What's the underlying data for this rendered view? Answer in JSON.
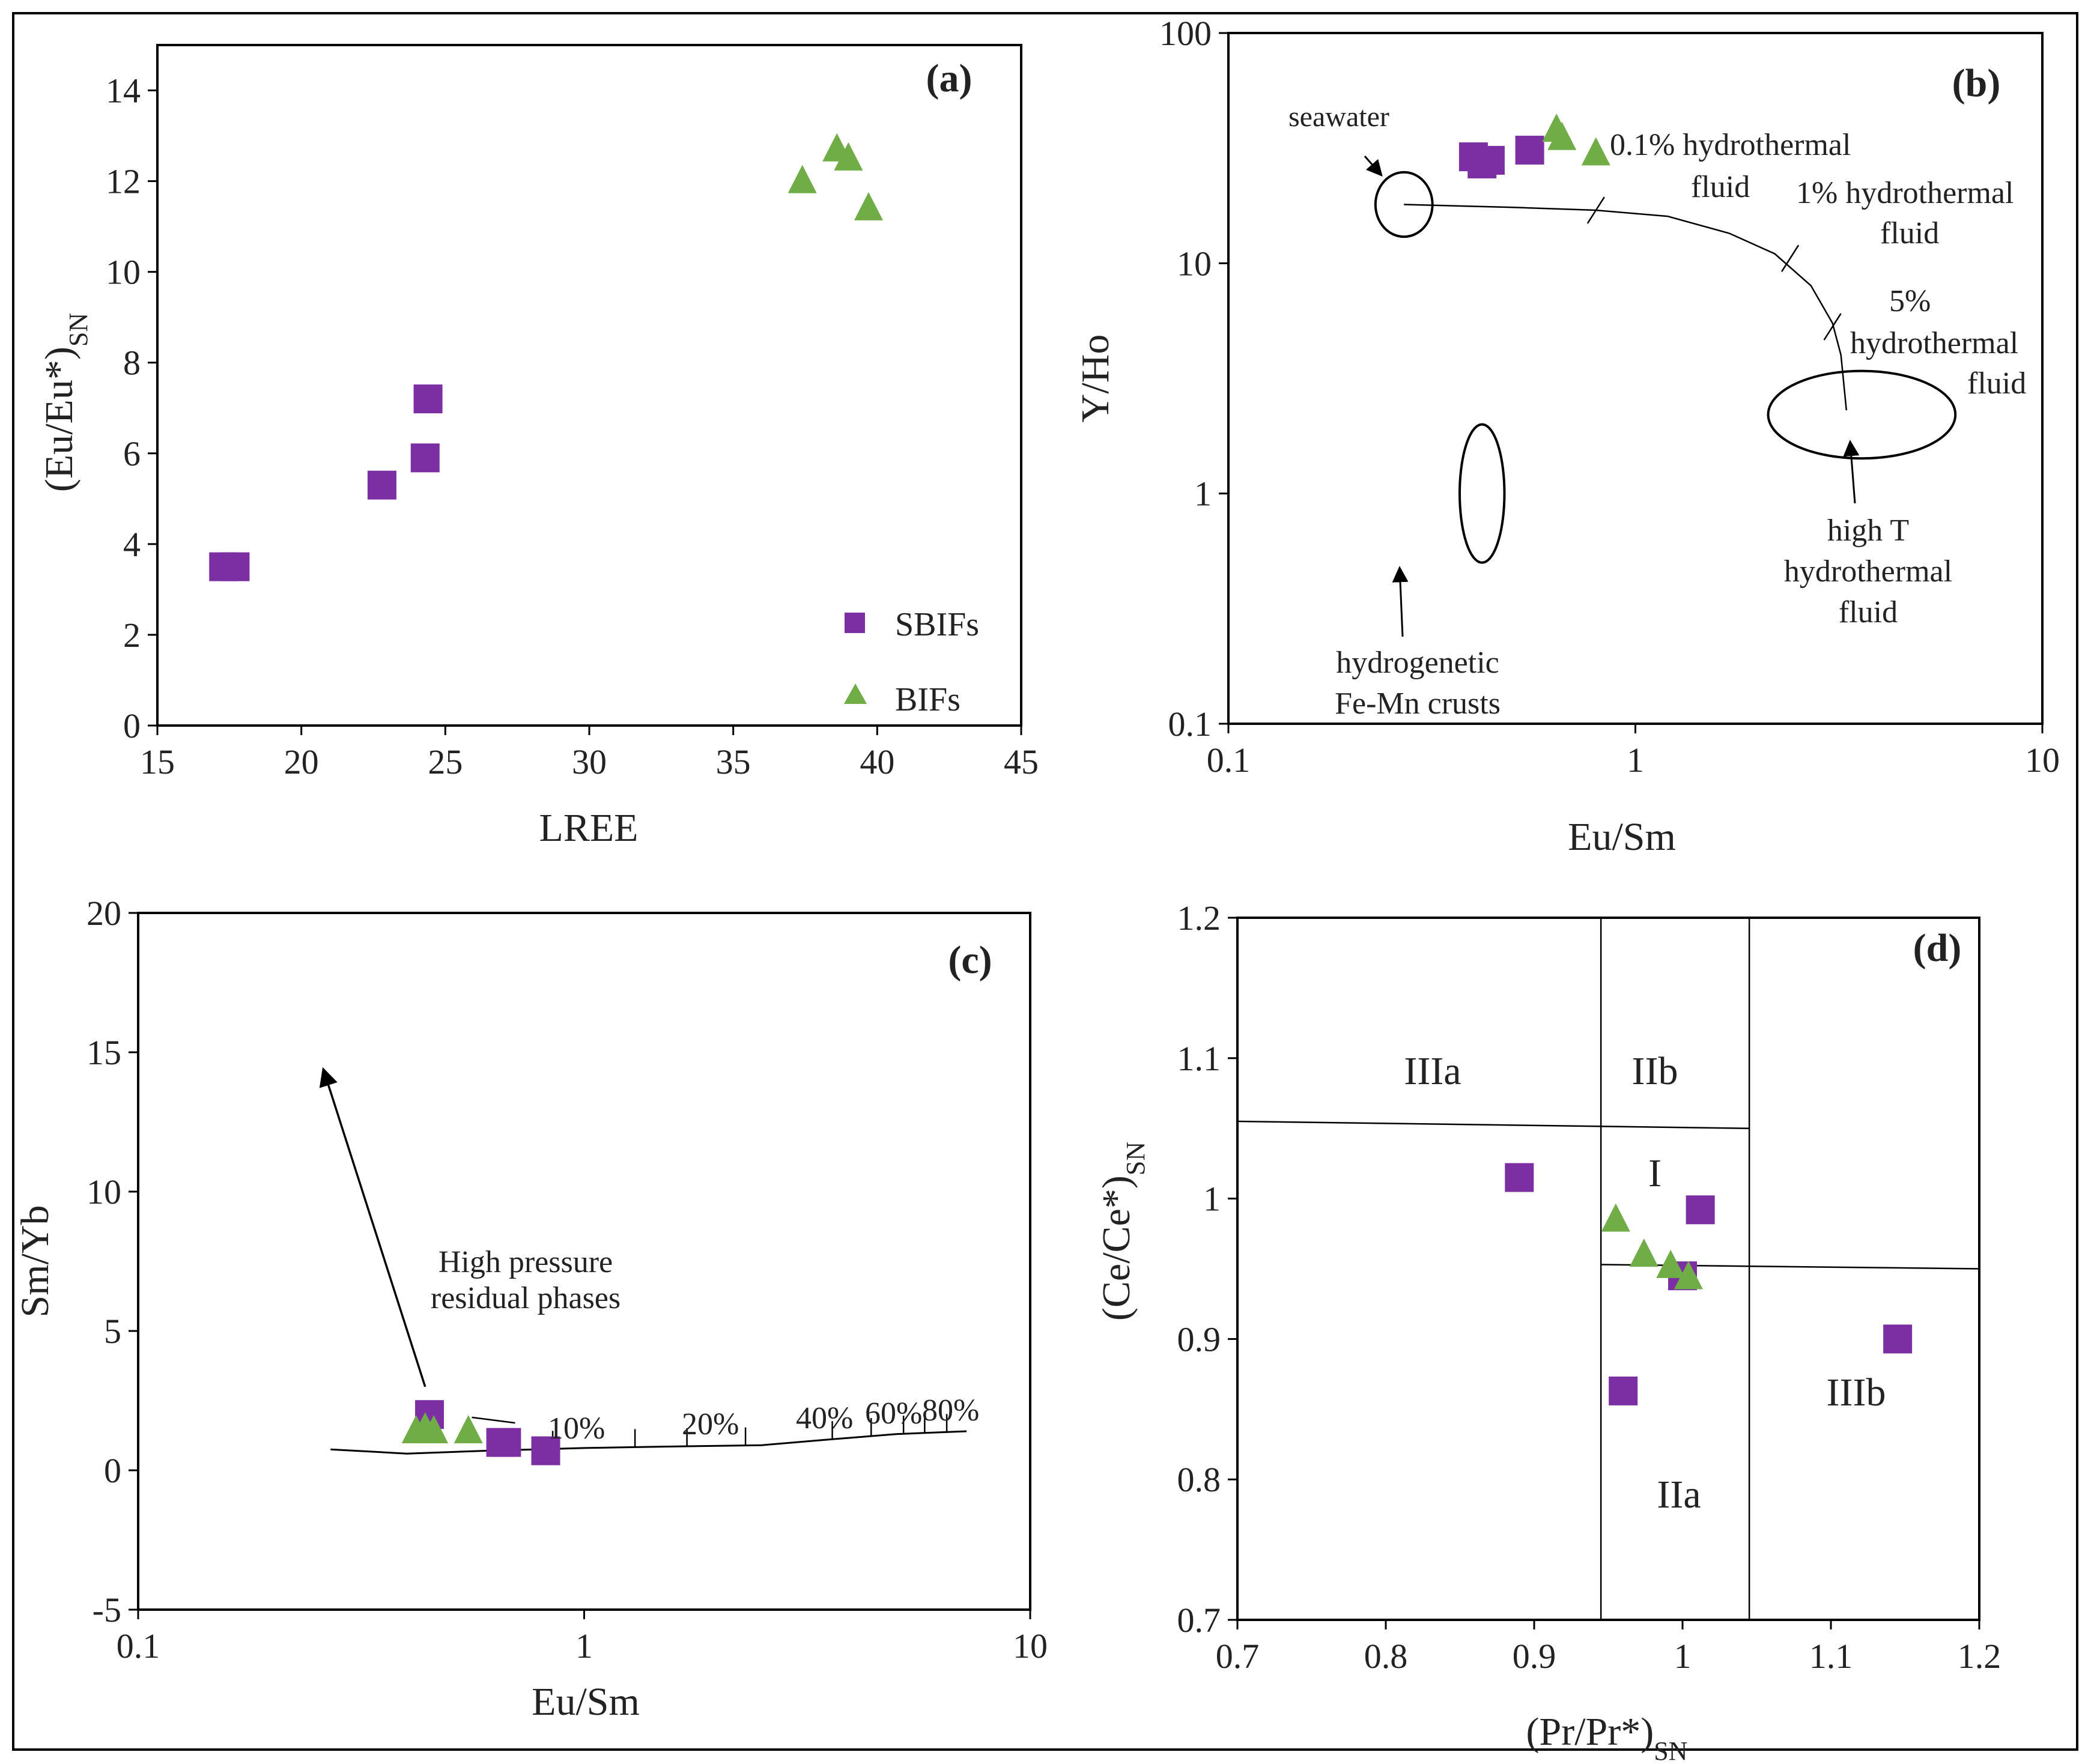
{
  "colors": {
    "sbif": "#7b2fa3",
    "bif": "#70ad47",
    "axis": "#000000",
    "text": "#222222"
  },
  "legend": {
    "sbif": "SBIFs",
    "bif": "BIFs"
  },
  "chart_data": [
    {
      "id": "a",
      "panel_label": "(a)",
      "type": "scatter",
      "xlabel": "LREE",
      "ylabel_main": "(Eu/Eu*)",
      "ylabel_sub": "SN",
      "xlim": [
        15,
        45
      ],
      "ylim": [
        0,
        15
      ],
      "xscale": "linear",
      "yscale": "linear",
      "xticks": [
        15,
        20,
        25,
        30,
        35,
        40,
        45
      ],
      "xtick_labels": [
        "15",
        "20",
        "25",
        "30",
        "35",
        "40",
        "45"
      ],
      "yticks": [
        0,
        2,
        4,
        6,
        8,
        10,
        12,
        14
      ],
      "ytick_labels": [
        "0",
        "2",
        "4",
        "6",
        "8",
        "10",
        "12",
        "14"
      ],
      "legend_position": "bottom-right",
      "series": [
        {
          "name": "SBIFs",
          "marker": "square",
          "points": [
            [
              17.3,
              3.5
            ],
            [
              17.7,
              3.5
            ],
            [
              22.8,
              5.3
            ],
            [
              24.3,
              5.9
            ],
            [
              24.4,
              7.2
            ]
          ]
        },
        {
          "name": "BIFs",
          "marker": "triangle",
          "points": [
            [
              37.4,
              12.0
            ],
            [
              38.6,
              12.7
            ],
            [
              39.0,
              12.5
            ],
            [
              39.7,
              11.4
            ]
          ]
        }
      ]
    },
    {
      "id": "b",
      "panel_label": "(b)",
      "type": "scatter",
      "xlabel": "Eu/Sm",
      "ylabel": "Y/Ho",
      "xlim": [
        0.1,
        10
      ],
      "ylim": [
        0.1,
        100
      ],
      "xscale": "log",
      "yscale": "log",
      "xticks": [
        0.1,
        1,
        10
      ],
      "xtick_labels": [
        "0.1",
        "1",
        "10"
      ],
      "yticks": [
        0.1,
        1,
        10,
        100
      ],
      "ytick_labels": [
        "0.1",
        "1",
        "10",
        "100"
      ],
      "series": [
        {
          "name": "SBIFs",
          "marker": "square",
          "points": [
            [
              0.4,
              29
            ],
            [
              0.42,
              27
            ],
            [
              0.44,
              28
            ],
            [
              0.55,
              31
            ]
          ]
        },
        {
          "name": "BIFs",
          "marker": "triangle",
          "points": [
            [
              0.64,
              38
            ],
            [
              0.66,
              35
            ],
            [
              0.8,
              30
            ]
          ]
        }
      ],
      "mixing_curve": [
        [
          0.27,
          18
        ],
        [
          0.5,
          17.5
        ],
        [
          0.8,
          17
        ],
        [
          1.2,
          16
        ],
        [
          1.7,
          13.5
        ],
        [
          2.2,
          11
        ],
        [
          2.7,
          8
        ],
        [
          3.05,
          5.5
        ],
        [
          3.2,
          4
        ],
        [
          3.3,
          2.3
        ]
      ],
      "curve_ticks": [
        [
          0.8,
          17
        ],
        [
          2.4,
          10.5
        ],
        [
          3.05,
          5.3
        ]
      ],
      "ellipses": [
        {
          "name": "seawater",
          "cx": 0.27,
          "cy": 18,
          "rx_decades": 0.07,
          "ry_decades": 0.14
        },
        {
          "name": "high T hydrothermal fluid",
          "cx": 3.6,
          "cy": 2.2,
          "rx_decades": 0.23,
          "ry_decades": 0.19
        },
        {
          "name": "hydrogenetic Fe-Mn crusts",
          "cx": 0.42,
          "cy": 1.0,
          "rx_decades": 0.055,
          "ry_decades": 0.3
        }
      ],
      "annotations": {
        "seawater": "seawater",
        "h01_line1": "0.1% hydrothermal",
        "h01_line2": "fluid",
        "h1_line1": "1% hydrothermal",
        "h1_line2": "fluid",
        "h5_line1": "5%",
        "h5_line2": "hydrothermal",
        "h5_line3": "fluid",
        "highT_line1": "high T",
        "highT_line2": "hydrothermal",
        "highT_line3": "fluid",
        "femn_line1": "hydrogenetic",
        "femn_line2": "Fe-Mn crusts"
      }
    },
    {
      "id": "c",
      "panel_label": "(c)",
      "type": "scatter",
      "xlabel": "Eu/Sm",
      "ylabel": "Sm/Yb",
      "xlim": [
        0.1,
        10
      ],
      "ylim": [
        -5,
        20
      ],
      "xscale": "log",
      "yscale": "linear",
      "xticks": [
        0.1,
        1,
        10
      ],
      "xtick_labels": [
        "0.1",
        "1",
        "10"
      ],
      "yticks": [
        -5,
        0,
        5,
        10,
        15,
        20
      ],
      "ytick_labels": [
        "-5",
        "0",
        "5",
        "10",
        "15",
        "20"
      ],
      "series": [
        {
          "name": "SBIFs",
          "marker": "square",
          "points": [
            [
              0.45,
              2.0
            ],
            [
              0.65,
              1.0
            ],
            [
              0.67,
              1.0
            ],
            [
              0.82,
              0.7
            ]
          ]
        },
        {
          "name": "BIFs",
          "marker": "triangle",
          "points": [
            [
              0.42,
              1.4
            ],
            [
              0.44,
              1.5
            ],
            [
              0.46,
              1.4
            ],
            [
              0.55,
              1.4
            ]
          ]
        }
      ],
      "melting_curve": [
        [
          0.27,
          0.75
        ],
        [
          0.4,
          0.6
        ],
        [
          0.6,
          0.7
        ],
        [
          1.0,
          0.8
        ],
        [
          1.5,
          0.85
        ],
        [
          2.5,
          0.9
        ],
        [
          3.5,
          1.1
        ],
        [
          5,
          1.3
        ],
        [
          7.2,
          1.4
        ]
      ],
      "curve_ticks": [
        0.85,
        1.3,
        1.7,
        2.3,
        3.6,
        4.4,
        5.2,
        5.8,
        6.5
      ],
      "arrow": {
        "from": [
          0.44,
          3.0
        ],
        "to": [
          0.26,
          14.4
        ]
      },
      "short_segment": {
        "from": [
          0.56,
          1.9
        ],
        "to": [
          0.7,
          1.7
        ]
      },
      "annotations": {
        "pressure_line1": "High pressure",
        "pressure_line2": "residual phases",
        "p10": "10%",
        "p20": "20%",
        "p40": "40%",
        "p60": "60%",
        "p80": "80%"
      }
    },
    {
      "id": "d",
      "panel_label": "(d)",
      "type": "scatter",
      "xlabel_main": "(Pr/Pr*)",
      "xlabel_sub": "SN",
      "ylabel_main": "(Ce/Ce*)",
      "ylabel_sub": "SN",
      "xlim": [
        0.7,
        1.2
      ],
      "ylim": [
        0.7,
        1.2
      ],
      "xscale": "linear",
      "yscale": "linear",
      "xticks": [
        0.7,
        0.8,
        0.9,
        1.0,
        1.1,
        1.2
      ],
      "xtick_labels": [
        "0.7",
        "0.8",
        "0.9",
        "1",
        "1.1",
        "1.2"
      ],
      "yticks": [
        0.7,
        0.8,
        0.9,
        1.0,
        1.1,
        1.2
      ],
      "ytick_labels": [
        "0.7",
        "0.8",
        "0.9",
        "1",
        "1.1",
        "1.2"
      ],
      "series": [
        {
          "name": "SBIFs",
          "marker": "square",
          "points": [
            [
              0.89,
              1.015
            ],
            [
              1.012,
              0.992
            ],
            [
              1.0,
              0.945
            ],
            [
              0.96,
              0.863
            ],
            [
              1.145,
              0.9
            ]
          ]
        },
        {
          "name": "BIFs",
          "marker": "triangle",
          "points": [
            [
              0.955,
              0.985
            ],
            [
              0.974,
              0.96
            ],
            [
              0.992,
              0.952
            ],
            [
              1.004,
              0.944
            ]
          ]
        }
      ],
      "field_lines": [
        {
          "from": [
            0.7,
            1.055
          ],
          "to": [
            1.045,
            1.05
          ]
        },
        {
          "from": [
            0.945,
            0.953
          ],
          "to": [
            1.2,
            0.95
          ]
        },
        {
          "from": [
            0.945,
            0.7
          ],
          "to": [
            0.945,
            1.2
          ]
        },
        {
          "from": [
            1.045,
            0.7
          ],
          "to": [
            1.045,
            1.2
          ]
        }
      ],
      "fields": {
        "IIIa": "IIIa",
        "IIb": "IIb",
        "I": "I",
        "IIIb": "IIIb",
        "IIa": "IIa"
      }
    }
  ]
}
